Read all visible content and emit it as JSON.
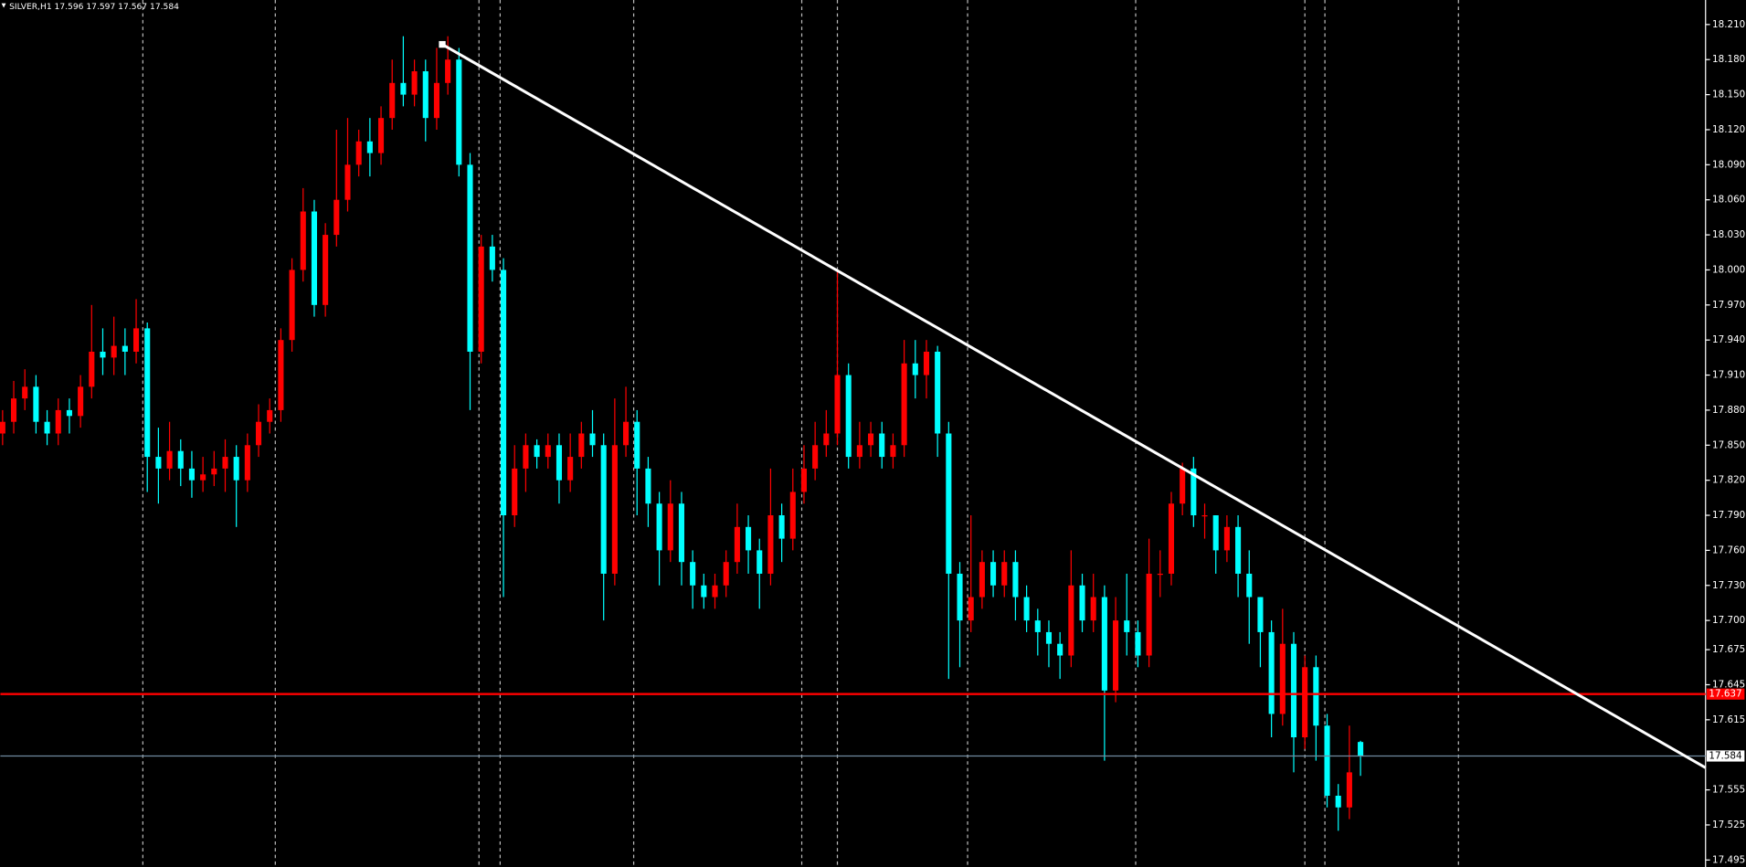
{
  "chart_data": {
    "type": "candlestick",
    "title": "SILVER,H1 17.596 17.597 17.567 17.584",
    "bull_color": "#ff0000",
    "bear_color": "#00ffff",
    "open": [
      17.86,
      17.87,
      17.89,
      17.9,
      17.87,
      17.86,
      17.88,
      17.875,
      17.9,
      17.93,
      17.925,
      17.935,
      17.93,
      17.95,
      17.84,
      17.83,
      17.845,
      17.83,
      17.82,
      17.825,
      17.83,
      17.84,
      17.82,
      17.85,
      17.87,
      17.88,
      17.94,
      18.0,
      18.05,
      17.97,
      18.03,
      18.06,
      18.09,
      18.11,
      18.1,
      18.13,
      18.16,
      18.15,
      18.17,
      18.13,
      18.16,
      18.18,
      18.09,
      17.93,
      18.02,
      18.0,
      17.79,
      17.83,
      17.85,
      17.84,
      17.85,
      17.82,
      17.84,
      17.86,
      17.85,
      17.74,
      17.85,
      17.87,
      17.83,
      17.8,
      17.76,
      17.8,
      17.75,
      17.73,
      17.72,
      17.73,
      17.75,
      17.78,
      17.76,
      17.74,
      17.79,
      17.77,
      17.81,
      17.83,
      17.85,
      17.86,
      17.91,
      17.84,
      17.85,
      17.86,
      17.84,
      17.85,
      17.92,
      17.91,
      17.93,
      17.86,
      17.74,
      17.7,
      17.72,
      17.75,
      17.73,
      17.75,
      17.72,
      17.7,
      17.69,
      17.68,
      17.67,
      17.73,
      17.7,
      17.72,
      17.64,
      17.7,
      17.69,
      17.67,
      17.74,
      17.74,
      17.8,
      17.83,
      17.79,
      17.79,
      17.76,
      17.78,
      17.74,
      17.72,
      17.69,
      17.62,
      17.68,
      17.6,
      17.66,
      17.61,
      17.55,
      17.54,
      17.596
    ],
    "high": [
      17.88,
      17.905,
      17.915,
      17.91,
      17.88,
      17.89,
      17.89,
      17.91,
      17.97,
      17.95,
      17.96,
      17.95,
      17.975,
      17.955,
      17.865,
      17.87,
      17.855,
      17.845,
      17.84,
      17.845,
      17.855,
      17.85,
      17.86,
      17.885,
      17.89,
      17.95,
      18.01,
      18.07,
      18.06,
      18.04,
      18.12,
      18.13,
      18.12,
      18.13,
      18.14,
      18.18,
      18.2,
      18.18,
      18.18,
      18.19,
      18.2,
      18.19,
      18.1,
      18.03,
      18.03,
      18.01,
      17.85,
      17.86,
      17.855,
      17.86,
      17.86,
      17.86,
      17.87,
      17.88,
      17.86,
      17.89,
      17.9,
      17.88,
      17.84,
      17.81,
      17.82,
      17.81,
      17.76,
      17.74,
      17.74,
      17.76,
      17.8,
      17.79,
      17.77,
      17.83,
      17.8,
      17.83,
      17.85,
      17.87,
      17.88,
      18.0,
      17.92,
      17.87,
      17.87,
      17.87,
      17.86,
      17.94,
      17.94,
      17.94,
      17.935,
      17.87,
      17.75,
      17.79,
      17.76,
      17.76,
      17.76,
      17.76,
      17.73,
      17.71,
      17.7,
      17.69,
      17.76,
      17.74,
      17.74,
      17.73,
      17.72,
      17.74,
      17.7,
      17.77,
      17.76,
      17.81,
      17.835,
      17.84,
      17.8,
      17.79,
      17.79,
      17.79,
      17.76,
      17.72,
      17.7,
      17.71,
      17.69,
      17.67,
      17.67,
      17.62,
      17.56,
      17.61,
      17.597
    ],
    "low": [
      17.85,
      17.86,
      17.88,
      17.86,
      17.85,
      17.85,
      17.86,
      17.865,
      17.89,
      17.91,
      17.91,
      17.91,
      17.92,
      17.81,
      17.8,
      17.82,
      17.815,
      17.805,
      17.81,
      17.815,
      17.81,
      17.78,
      17.81,
      17.84,
      17.86,
      17.87,
      17.93,
      17.99,
      17.96,
      17.96,
      18.02,
      18.05,
      18.08,
      18.08,
      18.09,
      18.12,
      18.14,
      18.14,
      18.11,
      18.12,
      18.15,
      18.08,
      17.88,
      17.92,
      17.99,
      17.72,
      17.78,
      17.81,
      17.83,
      17.83,
      17.8,
      17.81,
      17.83,
      17.84,
      17.7,
      17.73,
      17.84,
      17.79,
      17.78,
      17.73,
      17.75,
      17.73,
      17.71,
      17.71,
      17.71,
      17.72,
      17.74,
      17.74,
      17.71,
      17.73,
      17.75,
      17.76,
      17.8,
      17.82,
      17.84,
      17.85,
      17.83,
      17.83,
      17.84,
      17.83,
      17.83,
      17.84,
      17.89,
      17.89,
      17.84,
      17.65,
      17.66,
      17.69,
      17.71,
      17.72,
      17.72,
      17.7,
      17.69,
      17.67,
      17.66,
      17.65,
      17.66,
      17.69,
      17.69,
      17.58,
      17.63,
      17.67,
      17.66,
      17.66,
      17.72,
      17.73,
      17.79,
      17.78,
      17.77,
      17.74,
      17.75,
      17.72,
      17.68,
      17.66,
      17.6,
      17.61,
      17.57,
      17.59,
      17.58,
      17.54,
      17.52,
      17.53,
      17.567
    ],
    "close": [
      17.87,
      17.89,
      17.9,
      17.87,
      17.86,
      17.88,
      17.875,
      17.9,
      17.93,
      17.925,
      17.935,
      17.93,
      17.95,
      17.84,
      17.83,
      17.845,
      17.83,
      17.82,
      17.825,
      17.83,
      17.84,
      17.82,
      17.85,
      17.87,
      17.88,
      17.94,
      18.0,
      18.05,
      17.97,
      18.03,
      18.06,
      18.09,
      18.11,
      18.1,
      18.13,
      18.16,
      18.15,
      18.17,
      18.13,
      18.16,
      18.18,
      18.09,
      17.93,
      18.02,
      18.0,
      17.79,
      17.83,
      17.85,
      17.84,
      17.85,
      17.82,
      17.84,
      17.86,
      17.85,
      17.74,
      17.85,
      17.87,
      17.83,
      17.8,
      17.76,
      17.8,
      17.75,
      17.73,
      17.72,
      17.73,
      17.75,
      17.78,
      17.76,
      17.74,
      17.79,
      17.77,
      17.81,
      17.83,
      17.85,
      17.86,
      17.91,
      17.84,
      17.85,
      17.86,
      17.84,
      17.85,
      17.92,
      17.91,
      17.93,
      17.86,
      17.74,
      17.7,
      17.72,
      17.75,
      17.73,
      17.75,
      17.72,
      17.7,
      17.69,
      17.68,
      17.67,
      17.73,
      17.7,
      17.72,
      17.64,
      17.7,
      17.69,
      17.67,
      17.74,
      17.74,
      17.8,
      17.83,
      17.79,
      17.79,
      17.76,
      17.78,
      17.74,
      17.72,
      17.69,
      17.62,
      17.68,
      17.6,
      17.66,
      17.61,
      17.55,
      17.54,
      17.57,
      17.584
    ],
    "ylim": [
      17.489,
      18.231
    ],
    "yticks": [
      {
        "value": 18.21,
        "label": "18.210"
      },
      {
        "value": 18.18,
        "label": "18.180"
      },
      {
        "value": 18.15,
        "label": "18.150"
      },
      {
        "value": 18.12,
        "label": "18.120"
      },
      {
        "value": 18.09,
        "label": "18.090"
      },
      {
        "value": 18.06,
        "label": "18.060"
      },
      {
        "value": 18.03,
        "label": "18.030"
      },
      {
        "value": 18.0,
        "label": "18.000"
      },
      {
        "value": 17.97,
        "label": "17.970"
      },
      {
        "value": 17.94,
        "label": "17.940"
      },
      {
        "value": 17.91,
        "label": "17.910"
      },
      {
        "value": 17.88,
        "label": "17.880"
      },
      {
        "value": 17.85,
        "label": "17.850"
      },
      {
        "value": 17.82,
        "label": "17.820"
      },
      {
        "value": 17.79,
        "label": "17.790"
      },
      {
        "value": 17.76,
        "label": "17.760"
      },
      {
        "value": 17.73,
        "label": "17.730"
      },
      {
        "value": 17.7,
        "label": "17.700"
      },
      {
        "value": 17.675,
        "label": "17.675"
      },
      {
        "value": 17.645,
        "label": "17.645"
      },
      {
        "value": 17.615,
        "label": "17.615"
      },
      {
        "value": 17.555,
        "label": "17.555"
      },
      {
        "value": 17.525,
        "label": "17.525"
      },
      {
        "value": 17.495,
        "label": "17.495"
      }
    ],
    "levels": [
      {
        "value": 17.637,
        "label": "17.637",
        "color": "#ff0000"
      },
      {
        "value": 17.584,
        "label": "17.584",
        "color": "#6f8aa0"
      }
    ],
    "trendline": {
      "x": [
        40,
        153
      ],
      "y": [
        18.193,
        17.574
      ],
      "color": "#ffffff"
    }
  }
}
